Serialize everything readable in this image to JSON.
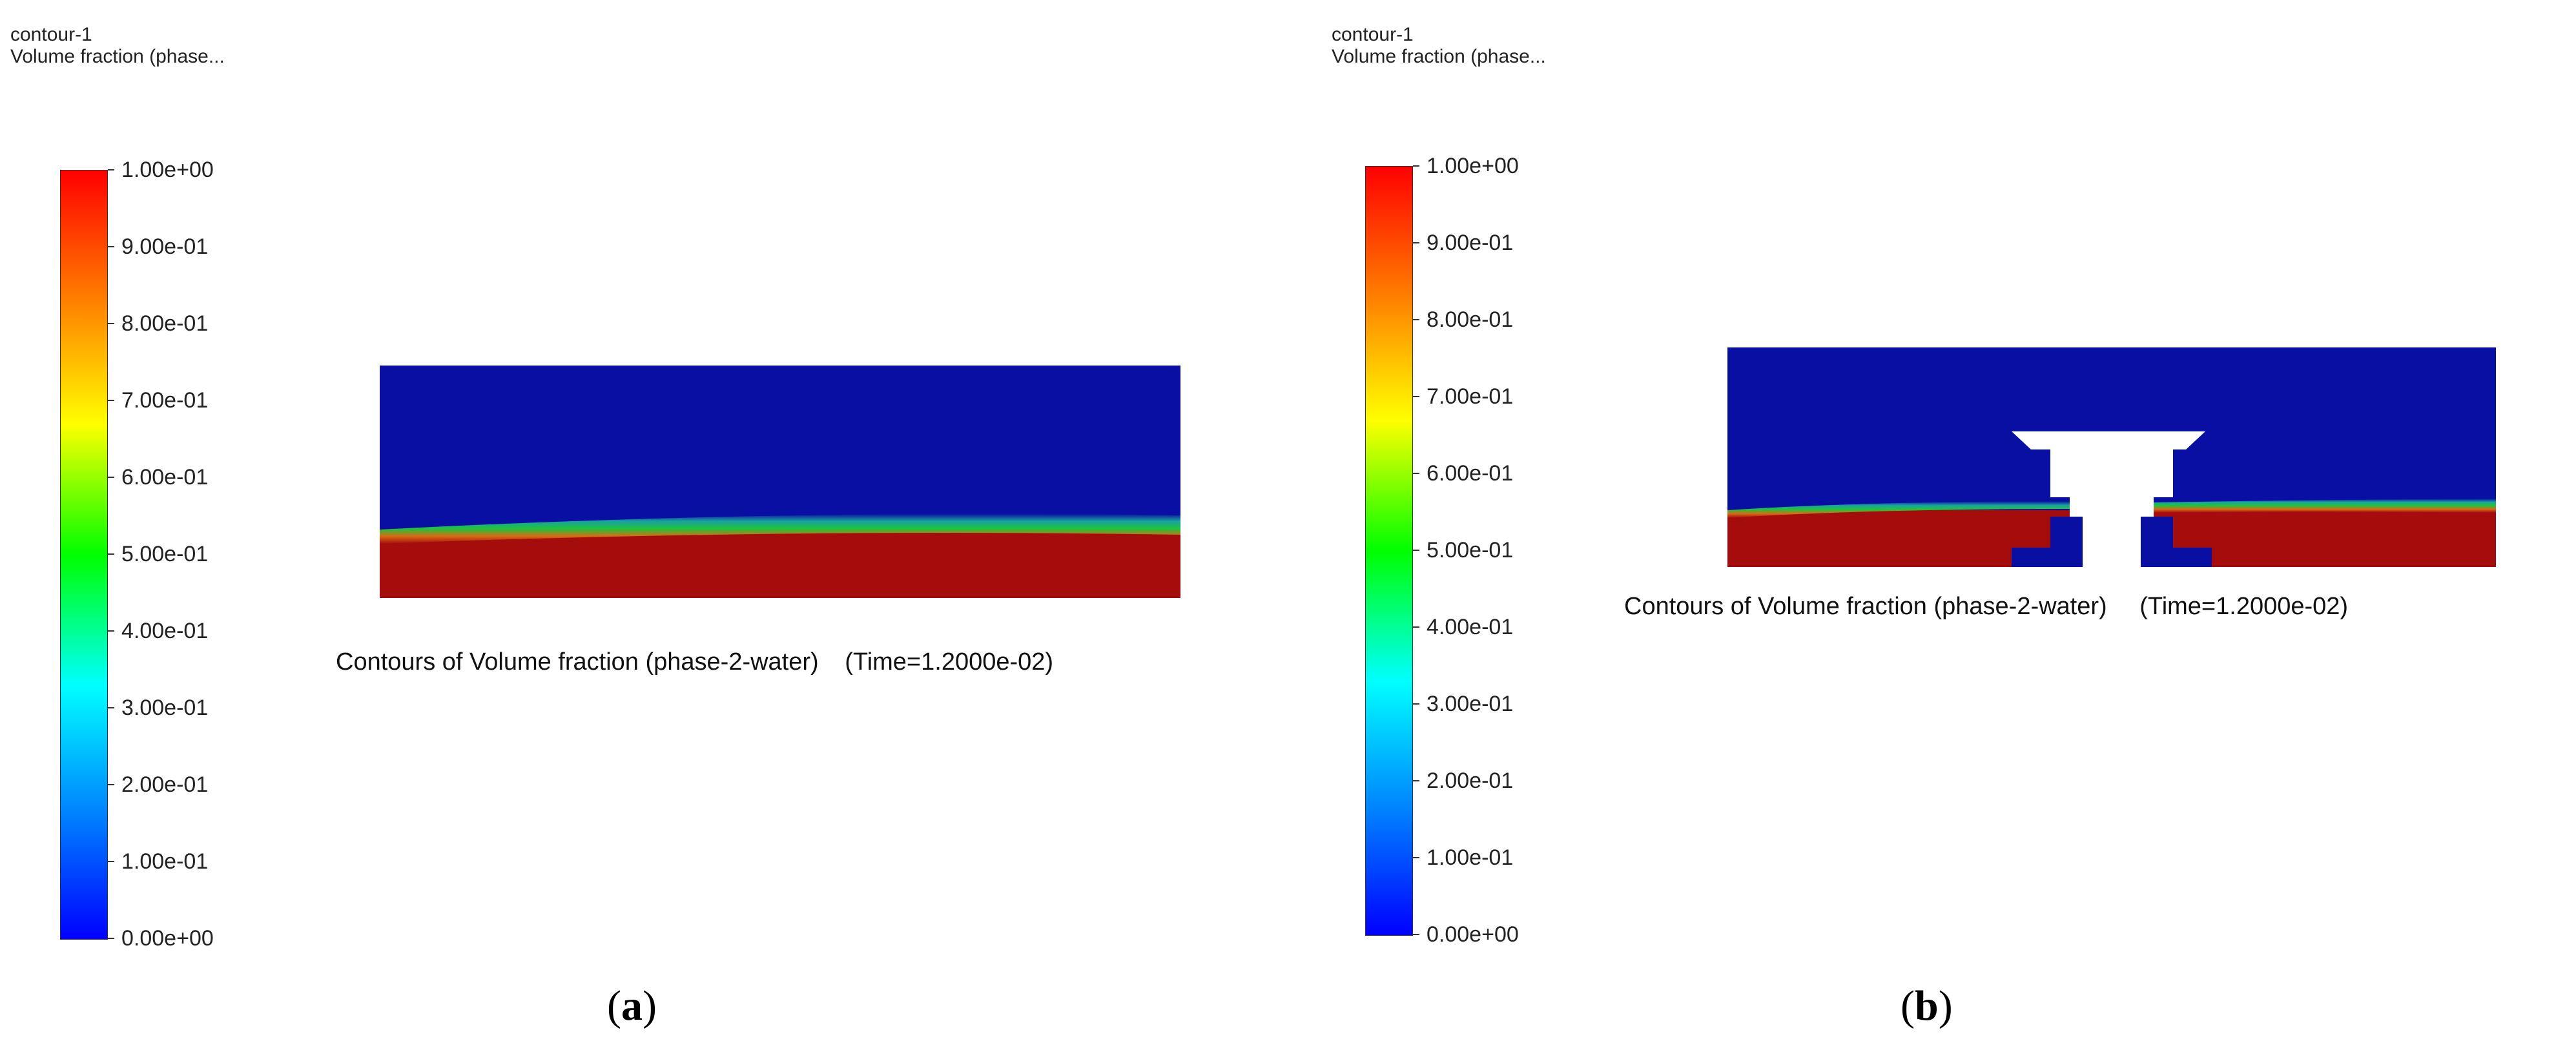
{
  "panels": [
    {
      "id": "a",
      "header_title": "contour-1",
      "header_subtitle": "Volume fraction (phase...",
      "colorbar_ticks": [
        "1.00e+00",
        "9.00e-01",
        "8.00e-01",
        "7.00e-01",
        "6.00e-01",
        "5.00e-01",
        "4.00e-01",
        "3.00e-01",
        "2.00e-01",
        "1.00e-01",
        "0.00e+00"
      ],
      "caption": "Contours of Volume fraction (phase-2-water)",
      "time_label": "(Time=1.2000e-02)",
      "sublabel_open": "(",
      "sublabel_letter": "a",
      "sublabel_close": ")"
    },
    {
      "id": "b",
      "header_title": "contour-1",
      "header_subtitle": "Volume fraction (phase...",
      "colorbar_ticks": [
        "1.00e+00",
        "9.00e-01",
        "8.00e-01",
        "7.00e-01",
        "6.00e-01",
        "5.00e-01",
        "4.00e-01",
        "3.00e-01",
        "2.00e-01",
        "1.00e-01",
        "0.00e+00"
      ],
      "caption": "Contours of Volume fraction (phase-2-water)",
      "time_label": "(Time=1.2000e-02)",
      "sublabel_open": "(",
      "sublabel_letter": "b",
      "sublabel_close": ")"
    }
  ],
  "colors": {
    "air": "#0a0fa3",
    "water": "#a50d0d",
    "interface_mid": "#1fc43a",
    "interface_teal": "#1aa3a0",
    "interface_orange": "#d96a14"
  }
}
